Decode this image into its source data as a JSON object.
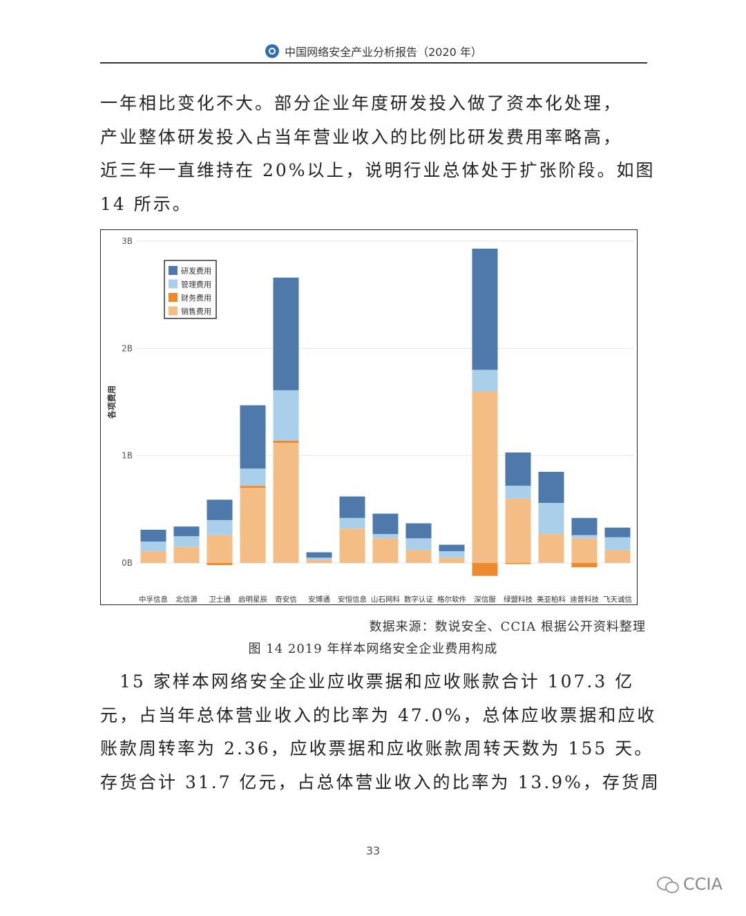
{
  "header": {
    "title": "中国网络安全产业分析报告（2020 年）"
  },
  "para1": [
    "一年相比变化不大。部分企业年度研发投入做了资本化处理，",
    "产业整体研发投入占当年营业收入的比例比研发费用率略高，",
    "近三年一直维持在 20%以上，说明行业总体处于扩张阶段。如图",
    "14 所示。"
  ],
  "chart_data": {
    "type": "bar",
    "stacked": true,
    "ylabel": "各项费用",
    "y_ticks": [
      "0B",
      "1B",
      "2B",
      "3B"
    ],
    "ylim": [
      0,
      3
    ],
    "grid": true,
    "legend_position": "top-left",
    "categories": [
      "中孚信息",
      "北信源",
      "卫士通",
      "启明星辰",
      "奇安信",
      "安博通",
      "安恒信息",
      "山石网科",
      "数字认证",
      "格尔软件",
      "深信服",
      "绿盟科技",
      "美亚柏科",
      "迪普科技",
      "飞天诚信"
    ],
    "series": [
      {
        "name": "销售费用",
        "color": "#f5bd86",
        "values": [
          0.11,
          0.15,
          0.26,
          0.7,
          1.12,
          0.03,
          0.32,
          0.23,
          0.12,
          0.05,
          1.6,
          0.6,
          0.27,
          0.23,
          0.12
        ]
      },
      {
        "name": "财务费用",
        "color": "#ee8a2e",
        "values": [
          0,
          0,
          -0.02,
          0.02,
          0.02,
          0,
          0,
          0,
          0,
          0,
          -0.12,
          -0.01,
          0,
          -0.04,
          0
        ]
      },
      {
        "name": "管理费用",
        "color": "#a9cfea",
        "values": [
          0.09,
          0.1,
          0.14,
          0.16,
          0.47,
          0.02,
          0.1,
          0.04,
          0.11,
          0.06,
          0.2,
          0.12,
          0.29,
          0.03,
          0.12
        ]
      },
      {
        "name": "研发费用",
        "color": "#4f79aa",
        "values": [
          0.11,
          0.09,
          0.19,
          0.59,
          1.05,
          0.05,
          0.2,
          0.19,
          0.14,
          0.06,
          1.13,
          0.31,
          0.29,
          0.16,
          0.09
        ]
      }
    ],
    "legend_order": [
      "研发费用",
      "管理费用",
      "财务费用",
      "销售费用"
    ]
  },
  "captions": {
    "source": "数据来源：数说安全、CCIA 根据公开资料整理",
    "figure": "图 14 2019 年样本网络安全企业费用构成"
  },
  "para2": [
    "　15 家样本网络安全企业应收票据和应收账款合计 107.3 亿",
    "元，占当年总体营业收入的比率为 47.0%，总体应收票据和应收",
    "账款周转率为 2.36，应收票据和应收账款周转天数为 155 天。",
    "存货合计 31.7 亿元，占总体营业收入的比率为 13.9%，存货周"
  ],
  "page_number": "33",
  "watermark": "CCIA"
}
